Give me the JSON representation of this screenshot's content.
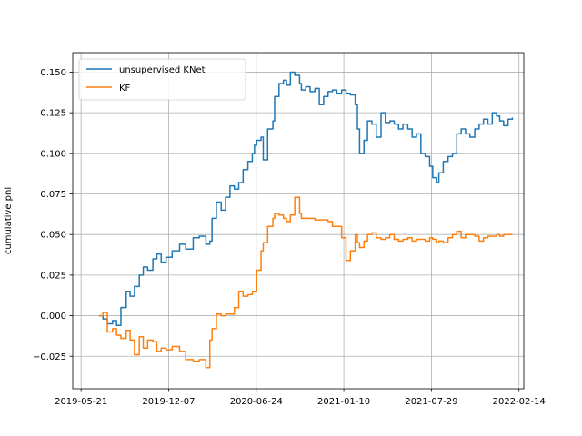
{
  "chart_data": {
    "type": "line",
    "title": "",
    "xlabel": "",
    "ylabel": "cumulative pnl",
    "xlim": [
      "2019-05-02",
      "2022-02-25"
    ],
    "ylim": [
      -0.045,
      0.162
    ],
    "x_ticks": [
      "2019-05-21",
      "2019-12-07",
      "2020-06-24",
      "2021-01-10",
      "2021-07-29",
      "2022-02-14"
    ],
    "y_ticks": [
      -0.025,
      0.0,
      0.025,
      0.05,
      0.075,
      0.1,
      0.125,
      0.15
    ],
    "y_tick_labels": [
      "−0.025",
      "0.000",
      "0.025",
      "0.050",
      "0.075",
      "0.100",
      "0.125",
      "0.150"
    ],
    "grid": true,
    "legend_position": "top-left",
    "series": [
      {
        "name": "unsupervised KNet",
        "color": "#1f77b4",
        "x": [
          "2019-07-01",
          "2019-07-10",
          "2019-07-20",
          "2019-08-01",
          "2019-08-10",
          "2019-08-20",
          "2019-09-01",
          "2019-09-10",
          "2019-09-20",
          "2019-10-01",
          "2019-10-10",
          "2019-10-20",
          "2019-11-01",
          "2019-11-10",
          "2019-11-20",
          "2019-12-01",
          "2019-12-15",
          "2020-01-01",
          "2020-01-15",
          "2020-02-01",
          "2020-02-15",
          "2020-03-01",
          "2020-03-10",
          "2020-03-15",
          "2020-03-25",
          "2020-04-05",
          "2020-04-15",
          "2020-04-25",
          "2020-05-05",
          "2020-05-15",
          "2020-05-25",
          "2020-06-05",
          "2020-06-15",
          "2020-06-20",
          "2020-06-25",
          "2020-07-05",
          "2020-07-10",
          "2020-07-20",
          "2020-08-01",
          "2020-08-05",
          "2020-08-15",
          "2020-08-25",
          "2020-09-01",
          "2020-09-10",
          "2020-09-20",
          "2020-10-01",
          "2020-10-05",
          "2020-10-15",
          "2020-10-25",
          "2020-11-05",
          "2020-11-15",
          "2020-11-25",
          "2020-12-05",
          "2020-12-15",
          "2020-12-25",
          "2021-01-05",
          "2021-01-15",
          "2021-01-25",
          "2021-02-05",
          "2021-02-10",
          "2021-02-15",
          "2021-02-25",
          "2021-03-05",
          "2021-03-15",
          "2021-03-25",
          "2021-04-05",
          "2021-04-15",
          "2021-04-25",
          "2021-05-05",
          "2021-05-15",
          "2021-05-25",
          "2021-06-05",
          "2021-06-15",
          "2021-06-25",
          "2021-07-05",
          "2021-07-15",
          "2021-07-25",
          "2021-08-01",
          "2021-08-10",
          "2021-08-15",
          "2021-08-25",
          "2021-09-05",
          "2021-09-15",
          "2021-09-25",
          "2021-10-05",
          "2021-10-15",
          "2021-10-25",
          "2021-11-05",
          "2021-11-15",
          "2021-11-25",
          "2021-12-05",
          "2021-12-15",
          "2021-12-25",
          "2022-01-01",
          "2022-01-10",
          "2022-01-20",
          "2022-01-30"
        ],
        "values": [
          0.0,
          -0.002,
          -0.005,
          -0.003,
          -0.006,
          0.005,
          0.015,
          0.012,
          0.018,
          0.025,
          0.03,
          0.028,
          0.035,
          0.038,
          0.033,
          0.036,
          0.04,
          0.044,
          0.041,
          0.048,
          0.049,
          0.044,
          0.046,
          0.06,
          0.07,
          0.065,
          0.073,
          0.08,
          0.078,
          0.082,
          0.09,
          0.095,
          0.1,
          0.105,
          0.108,
          0.11,
          0.096,
          0.115,
          0.12,
          0.135,
          0.143,
          0.145,
          0.142,
          0.15,
          0.148,
          0.143,
          0.139,
          0.141,
          0.138,
          0.14,
          0.13,
          0.135,
          0.138,
          0.139,
          0.137,
          0.139,
          0.137,
          0.136,
          0.13,
          0.115,
          0.1,
          0.108,
          0.12,
          0.118,
          0.11,
          0.125,
          0.119,
          0.12,
          0.118,
          0.115,
          0.118,
          0.115,
          0.11,
          0.112,
          0.1,
          0.098,
          0.092,
          0.085,
          0.082,
          0.088,
          0.095,
          0.098,
          0.1,
          0.112,
          0.115,
          0.112,
          0.11,
          0.115,
          0.118,
          0.121,
          0.118,
          0.125,
          0.123,
          0.12,
          0.117,
          0.121,
          0.122
        ]
      },
      {
        "name": "KF",
        "color": "#ff7f0e",
        "x": [
          "2019-07-01",
          "2019-07-10",
          "2019-07-20",
          "2019-08-01",
          "2019-08-10",
          "2019-08-20",
          "2019-09-01",
          "2019-09-10",
          "2019-09-20",
          "2019-10-01",
          "2019-10-10",
          "2019-10-20",
          "2019-11-01",
          "2019-11-10",
          "2019-11-20",
          "2019-12-01",
          "2019-12-15",
          "2020-01-01",
          "2020-01-15",
          "2020-02-01",
          "2020-02-15",
          "2020-03-01",
          "2020-03-10",
          "2020-03-15",
          "2020-03-25",
          "2020-04-05",
          "2020-04-15",
          "2020-04-25",
          "2020-05-05",
          "2020-05-15",
          "2020-05-25",
          "2020-06-05",
          "2020-06-15",
          "2020-06-20",
          "2020-06-25",
          "2020-07-05",
          "2020-07-10",
          "2020-07-20",
          "2020-08-01",
          "2020-08-05",
          "2020-08-15",
          "2020-08-25",
          "2020-09-01",
          "2020-09-10",
          "2020-09-20",
          "2020-10-01",
          "2020-10-05",
          "2020-10-15",
          "2020-10-25",
          "2020-11-05",
          "2020-11-15",
          "2020-11-25",
          "2020-12-05",
          "2020-12-15",
          "2020-12-25",
          "2021-01-05",
          "2021-01-15",
          "2021-01-25",
          "2021-02-05",
          "2021-02-10",
          "2021-02-15",
          "2021-02-25",
          "2021-03-05",
          "2021-03-15",
          "2021-03-25",
          "2021-04-05",
          "2021-04-15",
          "2021-04-25",
          "2021-05-05",
          "2021-05-15",
          "2021-05-25",
          "2021-06-05",
          "2021-06-15",
          "2021-06-25",
          "2021-07-05",
          "2021-07-15",
          "2021-07-25",
          "2021-08-01",
          "2021-08-10",
          "2021-08-15",
          "2021-08-25",
          "2021-09-05",
          "2021-09-15",
          "2021-09-25",
          "2021-10-05",
          "2021-10-15",
          "2021-10-25",
          "2021-11-05",
          "2021-11-15",
          "2021-11-25",
          "2021-12-05",
          "2021-12-15",
          "2021-12-25",
          "2022-01-01",
          "2022-01-10",
          "2022-01-20",
          "2022-01-30"
        ],
        "values": [
          0.0,
          0.002,
          -0.01,
          -0.008,
          -0.012,
          -0.014,
          -0.009,
          -0.015,
          -0.024,
          -0.013,
          -0.02,
          -0.015,
          -0.016,
          -0.022,
          -0.02,
          -0.021,
          -0.019,
          -0.022,
          -0.027,
          -0.028,
          -0.027,
          -0.032,
          -0.015,
          -0.008,
          0.001,
          0.0,
          0.001,
          0.001,
          0.005,
          0.015,
          0.012,
          0.013,
          0.015,
          0.015,
          0.028,
          0.04,
          0.045,
          0.055,
          0.06,
          0.063,
          0.062,
          0.06,
          0.058,
          0.062,
          0.073,
          0.063,
          0.06,
          0.06,
          0.06,
          0.059,
          0.059,
          0.059,
          0.058,
          0.055,
          0.055,
          0.048,
          0.034,
          0.04,
          0.05,
          0.045,
          0.042,
          0.046,
          0.05,
          0.051,
          0.048,
          0.047,
          0.048,
          0.05,
          0.047,
          0.046,
          0.047,
          0.048,
          0.046,
          0.047,
          0.047,
          0.046,
          0.048,
          0.047,
          0.045,
          0.046,
          0.045,
          0.048,
          0.05,
          0.052,
          0.048,
          0.05,
          0.05,
          0.049,
          0.046,
          0.048,
          0.049,
          0.049,
          0.05,
          0.049,
          0.05,
          0.05,
          0.05
        ]
      }
    ]
  }
}
